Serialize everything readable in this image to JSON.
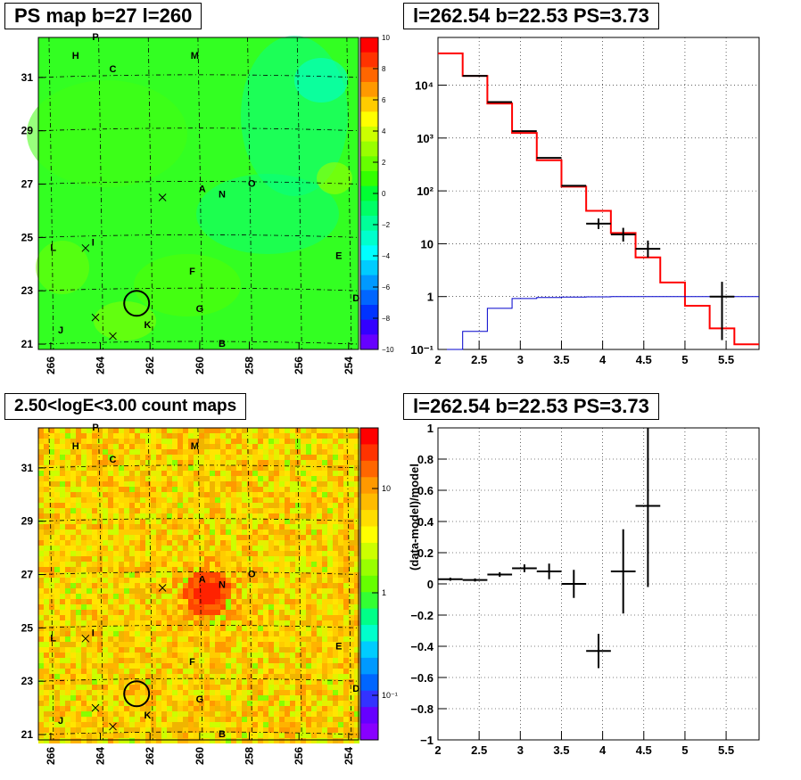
{
  "panels": {
    "ps_map": {
      "title": "PS map b=27 l=260",
      "x_ticks": [
        "266",
        "264",
        "262",
        "260",
        "258",
        "256",
        "254"
      ],
      "y_ticks": [
        "31",
        "29",
        "27",
        "25",
        "23",
        "21"
      ],
      "colorbar_ticks": [
        "10",
        "8",
        "6",
        "4",
        "2",
        "0",
        "−2",
        "−4",
        "−6",
        "−8",
        "−10"
      ],
      "colorbar_colors": [
        "#ff0000",
        "#ff3300",
        "#ff6600",
        "#ff9900",
        "#ffcc00",
        "#ffff00",
        "#ccff00",
        "#99ff00",
        "#66ff00",
        "#33ff00",
        "#00ff33",
        "#00ff66",
        "#00ff99",
        "#00ffcc",
        "#00ffff",
        "#00ccff",
        "#0099ff",
        "#0066ff",
        "#0033ff",
        "#3300ff",
        "#6600ff"
      ]
    },
    "count_map": {
      "title": "2.50<logE<3.00 count maps",
      "x_ticks": [
        "266",
        "264",
        "262",
        "260",
        "258",
        "256",
        "254"
      ],
      "y_ticks": [
        "31",
        "29",
        "27",
        "25",
        "23",
        "21"
      ],
      "colorbar_ticks": [
        "10",
        "1",
        "10⁻¹"
      ]
    },
    "spectrum": {
      "title": "l=262.54 b=22.53 PS=3.73",
      "x_ticks": [
        "2",
        "2.5",
        "3",
        "3.5",
        "4",
        "4.5",
        "5",
        "5.5"
      ],
      "y_ticks": [
        "10⁴",
        "10³",
        "10²",
        "10",
        "1",
        "10⁻¹"
      ]
    },
    "residual": {
      "title": "l=262.54 b=22.53 PS=3.73",
      "ylabel": "(data-model)/model",
      "x_ticks": [
        "2",
        "2.5",
        "3",
        "3.5",
        "4",
        "4.5",
        "5",
        "5.5"
      ],
      "y_ticks": [
        "1",
        "0.8",
        "0.6",
        "0.4",
        "0.2",
        "0",
        "−0.2",
        "−0.4",
        "−0.6",
        "−0.8",
        "−1"
      ]
    }
  },
  "source_labels": [
    "P",
    "H",
    "C",
    "M",
    "A",
    "N",
    "O",
    "L",
    "I",
    "E",
    "F",
    "G",
    "D",
    "J",
    "K",
    "B"
  ],
  "chart_data": [
    {
      "type": "heatmap",
      "title": "PS map b=27 l=260",
      "xlabel": "",
      "ylabel": "",
      "xlim": [
        266.5,
        253.6
      ],
      "ylim": [
        20.8,
        32.5
      ],
      "zlim": [
        -10,
        10
      ],
      "sources": [
        {
          "name": "P",
          "l": 264.2,
          "b": 32.4
        },
        {
          "name": "H",
          "l": 265.0,
          "b": 31.7
        },
        {
          "name": "C",
          "l": 263.5,
          "b": 31.2
        },
        {
          "name": "M",
          "l": 260.2,
          "b": 31.7
        },
        {
          "name": "A",
          "l": 259.9,
          "b": 26.7
        },
        {
          "name": "N",
          "l": 259.1,
          "b": 26.5
        },
        {
          "name": "O",
          "l": 257.9,
          "b": 26.9
        },
        {
          "name": "L",
          "l": 265.9,
          "b": 24.5
        },
        {
          "name": "I",
          "l": 264.3,
          "b": 24.7
        },
        {
          "name": "E",
          "l": 254.4,
          "b": 24.2
        },
        {
          "name": "F",
          "l": 260.3,
          "b": 23.6
        },
        {
          "name": "G",
          "l": 260.0,
          "b": 22.2
        },
        {
          "name": "D",
          "l": 253.7,
          "b": 22.6
        },
        {
          "name": "J",
          "l": 265.6,
          "b": 21.4
        },
        {
          "name": "K",
          "l": 262.1,
          "b": 21.6
        },
        {
          "name": "B",
          "l": 259.1,
          "b": 20.9
        }
      ],
      "circle": {
        "l": 262.54,
        "b": 22.53
      }
    },
    {
      "type": "heatmap",
      "title": "2.50<logE<3.00 count maps",
      "xlabel": "",
      "ylabel": "",
      "xlim": [
        266.5,
        253.6
      ],
      "ylim": [
        20.8,
        32.5
      ],
      "zlim": [
        0.05,
        30
      ],
      "circle": {
        "l": 262.54,
        "b": 22.53
      }
    },
    {
      "type": "line",
      "title": "l=262.54 b=22.53 PS=3.73",
      "xlabel": "",
      "ylabel": "",
      "xlim": [
        2,
        5.9
      ],
      "ylim": [
        0.1,
        80000
      ],
      "yscale": "log",
      "series": [
        {
          "color": "#ff0000",
          "bin_edges": [
            2.0,
            2.3,
            2.6,
            2.9,
            3.2,
            3.5,
            3.8,
            4.1,
            4.4,
            4.7,
            5.0,
            5.3,
            5.6,
            5.9
          ],
          "values": [
            40000,
            15000,
            4500,
            1250,
            380,
            120,
            42,
            16,
            5.5,
            1.85,
            0.67,
            0.25,
            0.125
          ]
        },
        {
          "color": "#0000cc",
          "bin_edges": [
            2.0,
            2.3,
            2.6,
            2.9,
            3.2,
            3.5,
            3.8,
            4.1,
            4.4,
            4.7,
            5.0,
            5.3,
            5.6,
            5.9
          ],
          "values": [
            0.08,
            0.22,
            0.6,
            0.92,
            0.96,
            0.98,
            0.99,
            1.0,
            1.0,
            1.0,
            1.0,
            1.0,
            1.0
          ]
        },
        {
          "color": "#000000",
          "points": [
            {
              "x": 2.45,
              "y": 15000,
              "xerr": 0.15
            },
            {
              "x": 2.75,
              "y": 4800,
              "xerr": 0.15
            },
            {
              "x": 3.05,
              "y": 1350,
              "xerr": 0.15
            },
            {
              "x": 3.35,
              "y": 420,
              "xerr": 0.15
            },
            {
              "x": 3.65,
              "y": 125,
              "xerr": 0.15
            },
            {
              "x": 3.95,
              "y": 24,
              "xerr": 0.15,
              "ylo": 19,
              "yhi": 30
            },
            {
              "x": 4.25,
              "y": 15,
              "xerr": 0.15,
              "ylo": 11,
              "yhi": 20
            },
            {
              "x": 4.55,
              "y": 8,
              "xerr": 0.15,
              "ylo": 5.5,
              "yhi": 11.5
            },
            {
              "x": 5.45,
              "y": 1.0,
              "xerr": 0.15,
              "ylo": 0.15,
              "yhi": 1.9
            }
          ]
        }
      ]
    },
    {
      "type": "scatter",
      "title": "l=262.54 b=22.53 PS=3.73",
      "xlabel": "",
      "ylabel": "(data-model)/model",
      "xlim": [
        2,
        5.9
      ],
      "ylim": [
        -1,
        1
      ],
      "series": [
        {
          "color": "#000000",
          "points": [
            {
              "x": 2.15,
              "y": 0.03,
              "xerr": 0.15,
              "yerr": 0.01
            },
            {
              "x": 2.45,
              "y": 0.025,
              "xerr": 0.15,
              "yerr": 0.01
            },
            {
              "x": 2.75,
              "y": 0.06,
              "xerr": 0.15,
              "yerr": 0.015
            },
            {
              "x": 3.05,
              "y": 0.1,
              "xerr": 0.15,
              "yerr": 0.025
            },
            {
              "x": 3.35,
              "y": 0.08,
              "xerr": 0.15,
              "yerr": 0.05
            },
            {
              "x": 3.65,
              "y": 0.0,
              "xerr": 0.15,
              "yerr": 0.09
            },
            {
              "x": 3.95,
              "y": -0.43,
              "xerr": 0.15,
              "yerr": 0.11
            },
            {
              "x": 4.25,
              "y": 0.08,
              "xerr": 0.15,
              "yerr": 0.27
            },
            {
              "x": 4.55,
              "y": 0.5,
              "xerr": 0.15,
              "yerr": 0.52
            }
          ]
        }
      ]
    }
  ]
}
